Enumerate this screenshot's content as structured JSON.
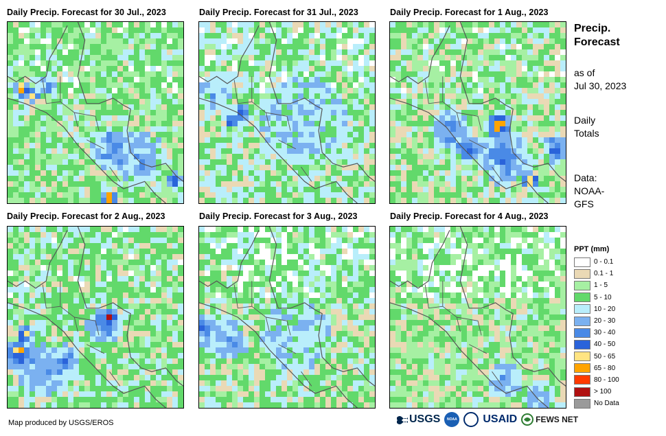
{
  "panels": [
    {
      "title": "Daily Precip. Forecast for 30 Jul., 2023",
      "scheme": "p1"
    },
    {
      "title": "Daily Precip. Forecast for 31 Jul., 2023",
      "scheme": "p2"
    },
    {
      "title": "Daily Precip. Forecast for 1 Aug., 2023",
      "scheme": "p3"
    },
    {
      "title": "Daily Precip. Forecast for 2 Aug., 2023",
      "scheme": "p4"
    },
    {
      "title": "Daily Precip. Forecast for 3 Aug., 2023",
      "scheme": "p5"
    },
    {
      "title": "Daily Precip. Forecast for 4 Aug., 2023",
      "scheme": "p6"
    }
  ],
  "side": {
    "title_line1": "Precip.",
    "title_line2": "Forecast",
    "asof_line1": "as of",
    "asof_line2": "Jul 30, 2023",
    "totals_line1": "Daily",
    "totals_line2": "Totals",
    "data_line1": "Data:",
    "data_line2": "NOAA-",
    "data_line3": "GFS"
  },
  "legend": {
    "title": "PPT (mm)",
    "items": [
      {
        "label": "0 - 0.1",
        "color": "#ffffff"
      },
      {
        "label": "0.1 - 1",
        "color": "#ead9b5"
      },
      {
        "label": "1 - 5",
        "color": "#a6f0a3"
      },
      {
        "label": "5 - 10",
        "color": "#62d96b"
      },
      {
        "label": "10 - 20",
        "color": "#b9eefb"
      },
      {
        "label": "20 - 30",
        "color": "#7bb1f0"
      },
      {
        "label": "30 - 40",
        "color": "#4a8ae6"
      },
      {
        "label": "40 - 50",
        "color": "#2a63da"
      },
      {
        "label": "50 - 65",
        "color": "#ffe482"
      },
      {
        "label": "65 - 80",
        "color": "#ffa400"
      },
      {
        "label": "80 - 100",
        "color": "#ff3a00"
      },
      {
        "label": "> 100",
        "color": "#b01010"
      },
      {
        "label": "No Data",
        "color": "#9a9a9a"
      }
    ]
  },
  "footer": {
    "credit": "Map produced by USGS/EROS",
    "logo_usgs": "USGS",
    "logo_noaa": "NOAA",
    "logo_usaid": "USAID",
    "logo_fews": "FEWS NET"
  }
}
